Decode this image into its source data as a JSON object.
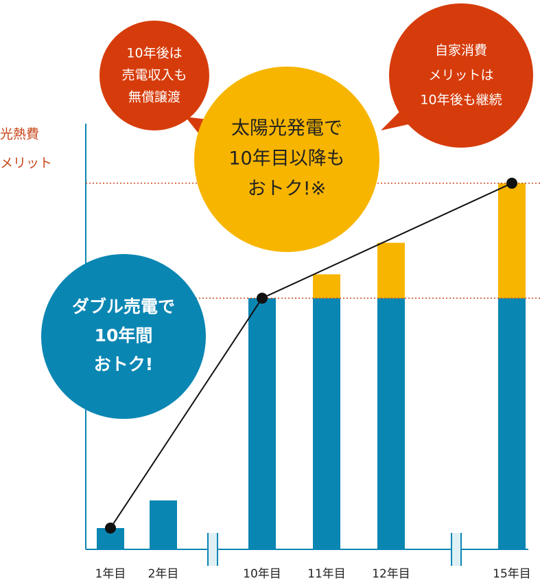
{
  "chart_data": {
    "type": "bar",
    "stacked": true,
    "y_label": [
      "光熱費",
      "メリット"
    ],
    "categories": [
      "1年目",
      "2年目",
      "10年目",
      "11年目",
      "12年目",
      "15年目"
    ],
    "ylim": [
      0,
      100
    ],
    "series": [
      {
        "color": "#0a86b3",
        "values": [
          5,
          11.5,
          59,
          59,
          59,
          59
        ]
      },
      {
        "color": "#f7b500",
        "values": [
          null,
          null,
          null,
          5.6,
          13,
          27
        ]
      }
    ],
    "line": {
      "color": "#111111",
      "x": [
        "1年目",
        "10年目",
        "15年目"
      ],
      "values": [
        5,
        59,
        86
      ]
    },
    "annotations": [
      {
        "color": "#d63c0b",
        "text_color": "#ffffff",
        "lines": [
          "10年後は",
          "売電収入も",
          "無償譲渡"
        ]
      },
      {
        "color": "#d63c0b",
        "text_color": "#ffffff",
        "lines": [
          "自家消費",
          "メリットは",
          "10年後も継続"
        ]
      },
      {
        "color": "#f7b500",
        "text_color": "#222222",
        "lines": [
          "太陽光発電で",
          "10年目以降も",
          "おトク!※"
        ]
      },
      {
        "color": "#0a86b3",
        "text_color": "#ffffff",
        "lines": [
          "ダブル売電で",
          "10年間",
          "おトク!"
        ]
      }
    ]
  }
}
